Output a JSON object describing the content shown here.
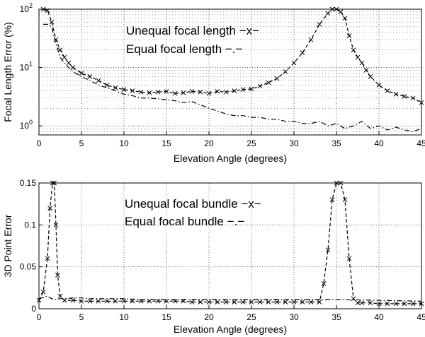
{
  "chart_data": [
    {
      "type": "line",
      "xlabel": "Elevation Angle (degrees)",
      "ylabel": "Focal Length Error (%)",
      "xlim": [
        0,
        45
      ],
      "ylim": [
        0.7,
        100
      ],
      "yscale": "log",
      "grid": true,
      "legend_position": "top-center",
      "x_ticks": [
        "0",
        "5",
        "10",
        "15",
        "20",
        "25",
        "30",
        "35",
        "40",
        "45"
      ],
      "y_ticks": [
        {
          "value": 1,
          "base": "10",
          "exp": "0"
        },
        {
          "value": 10,
          "base": "10",
          "exp": "1"
        },
        {
          "value": 100,
          "base": "10",
          "exp": "2"
        }
      ],
      "series": [
        {
          "name": "Unequal focal length −x−",
          "line_style": "dashed",
          "marker": "x",
          "x": [
            0.5,
            1,
            1.5,
            2,
            2.5,
            3,
            3.5,
            4,
            5,
            6,
            7,
            8,
            9,
            10,
            11,
            12,
            13,
            14,
            15,
            16,
            17,
            18,
            19,
            20,
            21,
            22,
            23,
            24,
            25,
            26,
            27,
            28,
            29,
            30,
            31,
            32,
            33,
            34,
            34.5,
            35,
            35.5,
            36,
            36.5,
            37,
            37.5,
            38,
            38.5,
            39,
            40,
            41,
            42,
            43,
            44,
            45
          ],
          "y": [
            100,
            95,
            60,
            30,
            20,
            15,
            12,
            10,
            8.0,
            7.0,
            6.0,
            5.0,
            4.5,
            4.2,
            4.0,
            3.8,
            3.7,
            3.8,
            3.9,
            3.6,
            3.7,
            3.9,
            3.8,
            3.6,
            3.9,
            3.8,
            4.0,
            4.2,
            4.3,
            4.8,
            5.5,
            6.5,
            8.5,
            12,
            18,
            30,
            55,
            85,
            100,
            100,
            90,
            70,
            35,
            20,
            15,
            12,
            9,
            7,
            5,
            4,
            3.5,
            3.2,
            3.0,
            2.5
          ]
        },
        {
          "name": "Equal focal length −.−",
          "line_style": "dash-dot",
          "marker": "none",
          "x": [
            0.5,
            1,
            1.5,
            2,
            2.5,
            3,
            3.5,
            4,
            5,
            6,
            7,
            8,
            9,
            10,
            11,
            12,
            13,
            14,
            15,
            16,
            17,
            18,
            19,
            20,
            21,
            22,
            23,
            24,
            25,
            26,
            27,
            28,
            29,
            30,
            31,
            32,
            33,
            34,
            35,
            36,
            37,
            38,
            39,
            40,
            41,
            42,
            43,
            44,
            45
          ],
          "y": [
            55,
            55,
            50,
            25,
            15,
            12,
            10,
            8.5,
            7.0,
            6.0,
            5.0,
            4.5,
            4.0,
            3.5,
            3.3,
            3.0,
            3.0,
            2.9,
            2.8,
            2.7,
            2.5,
            2.6,
            2.3,
            2.0,
            1.8,
            1.6,
            1.5,
            1.5,
            1.4,
            1.4,
            1.3,
            1.3,
            1.2,
            1.2,
            1.1,
            1.1,
            1.2,
            1.0,
            1.1,
            0.9,
            1.0,
            1.2,
            0.9,
            1.0,
            0.85,
            0.95,
            0.85,
            0.8,
            0.9
          ]
        }
      ]
    },
    {
      "type": "line",
      "xlabel": "Elevation Angle (degrees)",
      "ylabel": "3D Point Error",
      "xlim": [
        0,
        45
      ],
      "ylim": [
        0,
        0.15
      ],
      "yscale": "linear",
      "grid": true,
      "legend_position": "top-center",
      "x_ticks": [
        "0",
        "5",
        "10",
        "15",
        "20",
        "25",
        "30",
        "35",
        "40",
        "45"
      ],
      "y_ticks": [
        {
          "value": 0,
          "label": "0"
        },
        {
          "value": 0.05,
          "label": "0.05"
        },
        {
          "value": 0.1,
          "label": "0.1"
        },
        {
          "value": 0.15,
          "label": "0.15"
        }
      ],
      "series": [
        {
          "name": "Unequal focal bundle −x−",
          "line_style": "dashed",
          "marker": "x",
          "x": [
            0,
            0.5,
            1,
            1.3,
            1.6,
            1.8,
            2.0,
            2.2,
            2.5,
            3,
            4,
            5,
            6,
            7,
            8,
            9,
            10,
            11,
            12,
            13,
            14,
            15,
            16,
            17,
            18,
            19,
            20,
            21,
            22,
            23,
            24,
            25,
            26,
            27,
            28,
            29,
            30,
            31,
            32,
            33,
            33.5,
            34,
            34.5,
            35,
            35.5,
            36,
            36.5,
            37,
            37.5,
            38,
            39,
            40,
            41,
            42,
            43,
            44,
            45
          ],
          "y": [
            0.01,
            0.02,
            0.06,
            0.12,
            0.15,
            0.15,
            0.1,
            0.04,
            0.015,
            0.01,
            0.01,
            0.009,
            0.009,
            0.009,
            0.009,
            0.009,
            0.009,
            0.009,
            0.009,
            0.009,
            0.009,
            0.009,
            0.009,
            0.009,
            0.008,
            0.008,
            0.008,
            0.008,
            0.008,
            0.008,
            0.008,
            0.008,
            0.008,
            0.008,
            0.008,
            0.008,
            0.008,
            0.008,
            0.008,
            0.008,
            0.03,
            0.07,
            0.13,
            0.15,
            0.15,
            0.13,
            0.06,
            0.012,
            0.007,
            0.007,
            0.007,
            0.006,
            0.006,
            0.006,
            0.006,
            0.006,
            0.006
          ]
        },
        {
          "name": "Equal focal bundle −.−",
          "line_style": "dash-dot",
          "marker": "none",
          "x": [
            0,
            1,
            1.5,
            2,
            2.5,
            3,
            4,
            5,
            6,
            7,
            8,
            10,
            12,
            15,
            18,
            20,
            25,
            30,
            35,
            40,
            45
          ],
          "y": [
            0.012,
            0.015,
            0.012,
            0.011,
            0.012,
            0.012,
            0.013,
            0.013,
            0.012,
            0.012,
            0.012,
            0.012,
            0.011,
            0.011,
            0.011,
            0.011,
            0.011,
            0.011,
            0.011,
            0.01,
            0.009
          ]
        }
      ]
    }
  ]
}
